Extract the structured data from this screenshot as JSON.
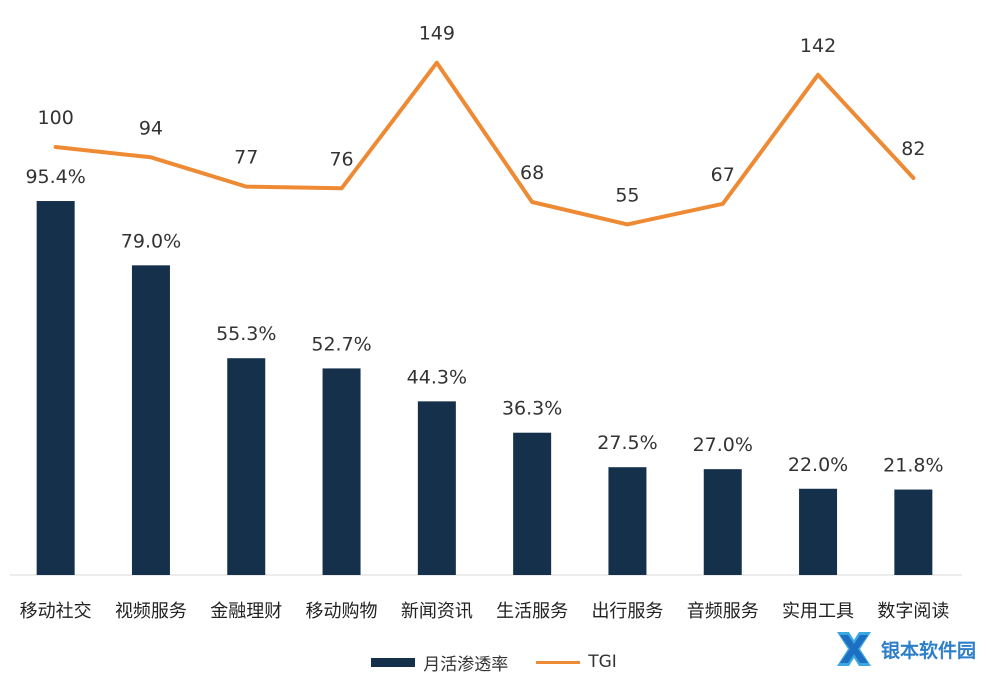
{
  "chart_data": {
    "type": "bar",
    "categories": [
      "移动社交",
      "视频服务",
      "金融理财",
      "移动购物",
      "新闻资讯",
      "生活服务",
      "出行服务",
      "音频服务",
      "实用工具",
      "数字阅读"
    ],
    "series": [
      {
        "name": "月活渗透率",
        "type": "bar",
        "values": [
          95.4,
          79.0,
          55.3,
          52.7,
          44.3,
          36.3,
          27.5,
          27.0,
          22.0,
          21.8
        ],
        "labels": [
          "95.4%",
          "79.0%",
          "55.3%",
          "52.7%",
          "44.3%",
          "36.3%",
          "27.5%",
          "27.0%",
          "22.0%",
          "21.8%"
        ],
        "color": "#15304a"
      },
      {
        "name": "TGI",
        "type": "line",
        "values": [
          100,
          94,
          77,
          76,
          149,
          68,
          55,
          67,
          142,
          82
        ],
        "labels": [
          "100",
          "94",
          "77",
          "76",
          "149",
          "68",
          "55",
          "67",
          "142",
          "82"
        ],
        "color": "#ee8a33"
      }
    ],
    "legend_position": "bottom-center",
    "grid": false
  },
  "watermark": {
    "text": "银本软件园",
    "color": "#2e7fc9"
  }
}
